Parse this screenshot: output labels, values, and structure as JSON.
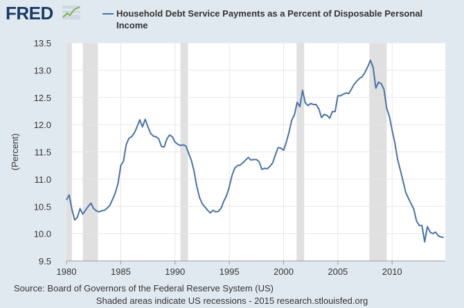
{
  "header": {
    "logo_text": "FRED",
    "logo_icon": "line-chart-icon"
  },
  "colors": {
    "background": "#e1e9f0",
    "plot_background": "#ffffff",
    "series_line": "#4572a7",
    "recession_shade": "#e0e0e0",
    "gridline": "#e6e6e6",
    "logo": "#1a3a66"
  },
  "footer": {
    "source": "Source: Board of Governors of the Federal Reserve System (US)",
    "note": "Shaded areas indicate US recessions - 2015 research.stlouisfed.org"
  },
  "chart_data": {
    "type": "line",
    "title": "",
    "ylabel": "(Percent)",
    "xlabel": "",
    "xlim": [
      1980,
      2014.9
    ],
    "ylim": [
      9.5,
      13.5
    ],
    "xticks": [
      1980,
      1985,
      1990,
      1995,
      2000,
      2005,
      2010
    ],
    "yticks": [
      "9.5",
      "10.0",
      "10.5",
      "11.0",
      "11.5",
      "12.0",
      "12.5",
      "13.0",
      "13.5"
    ],
    "grid": true,
    "legend_position": "top",
    "recessions": [
      [
        1980.0,
        1980.5
      ],
      [
        1981.5,
        1982.9
      ],
      [
        1990.5,
        1991.2
      ],
      [
        2001.2,
        2001.9
      ],
      [
        2007.9,
        2009.5
      ]
    ],
    "series": [
      {
        "name": "Household Debt Service Payments as a Percent of Disposable Personal Income",
        "x": [
          1980.0,
          1980.25,
          1980.5,
          1980.75,
          1981.0,
          1981.25,
          1981.5,
          1981.75,
          1982.0,
          1982.25,
          1982.5,
          1982.75,
          1983.0,
          1983.25,
          1983.5,
          1983.75,
          1984.0,
          1984.25,
          1984.5,
          1984.75,
          1985.0,
          1985.25,
          1985.5,
          1985.75,
          1986.0,
          1986.25,
          1986.5,
          1986.75,
          1987.0,
          1987.25,
          1987.5,
          1987.75,
          1988.0,
          1988.25,
          1988.5,
          1988.75,
          1989.0,
          1989.25,
          1989.5,
          1989.75,
          1990.0,
          1990.25,
          1990.5,
          1990.75,
          1991.0,
          1991.25,
          1991.5,
          1991.75,
          1992.0,
          1992.25,
          1992.5,
          1992.75,
          1993.0,
          1993.25,
          1993.5,
          1993.75,
          1994.0,
          1994.25,
          1994.5,
          1994.75,
          1995.0,
          1995.25,
          1995.5,
          1995.75,
          1996.0,
          1996.25,
          1996.5,
          1996.75,
          1997.0,
          1997.25,
          1997.5,
          1997.75,
          1998.0,
          1998.25,
          1998.5,
          1998.75,
          1999.0,
          1999.25,
          1999.5,
          1999.75,
          2000.0,
          2000.25,
          2000.5,
          2000.75,
          2001.0,
          2001.25,
          2001.5,
          2001.75,
          2002.0,
          2002.25,
          2002.5,
          2002.75,
          2003.0,
          2003.25,
          2003.5,
          2003.75,
          2004.0,
          2004.25,
          2004.5,
          2004.75,
          2005.0,
          2005.25,
          2005.5,
          2005.75,
          2006.0,
          2006.25,
          2006.5,
          2006.75,
          2007.0,
          2007.25,
          2007.5,
          2007.75,
          2008.0,
          2008.25,
          2008.5,
          2008.75,
          2009.0,
          2009.25,
          2009.5,
          2009.75,
          2010.0,
          2010.25,
          2010.5,
          2010.75,
          2011.0,
          2011.25,
          2011.5,
          2011.75,
          2012.0,
          2012.25,
          2012.5,
          2012.75,
          2013.0,
          2013.25,
          2013.5,
          2013.75,
          2014.0,
          2014.25,
          2014.5,
          2014.75
        ],
        "y": [
          10.62,
          10.71,
          10.45,
          10.25,
          10.3,
          10.46,
          10.36,
          10.43,
          10.5,
          10.56,
          10.46,
          10.42,
          10.4,
          10.42,
          10.43,
          10.47,
          10.52,
          10.63,
          10.75,
          10.92,
          11.25,
          11.33,
          11.63,
          11.75,
          11.78,
          11.85,
          11.96,
          12.09,
          11.96,
          12.1,
          11.96,
          11.84,
          11.79,
          11.78,
          11.74,
          11.6,
          11.59,
          11.74,
          11.81,
          11.78,
          11.68,
          11.64,
          11.62,
          11.63,
          11.61,
          11.48,
          11.35,
          11.15,
          10.87,
          10.67,
          10.55,
          10.49,
          10.43,
          10.38,
          10.43,
          10.4,
          10.41,
          10.47,
          10.6,
          10.7,
          10.86,
          11.07,
          11.2,
          11.25,
          11.26,
          11.3,
          11.35,
          11.4,
          11.35,
          11.36,
          11.36,
          11.32,
          11.18,
          11.2,
          11.19,
          11.24,
          11.3,
          11.45,
          11.58,
          11.57,
          11.53,
          11.68,
          11.86,
          12.08,
          12.18,
          12.41,
          12.33,
          12.63,
          12.4,
          12.35,
          12.39,
          12.37,
          12.37,
          12.29,
          12.13,
          12.19,
          12.17,
          12.12,
          12.24,
          12.24,
          12.53,
          12.53,
          12.56,
          12.58,
          12.57,
          12.65,
          12.74,
          12.8,
          12.85,
          12.88,
          12.96,
          13.06,
          13.18,
          13.05,
          12.67,
          12.78,
          12.75,
          12.65,
          12.3,
          12.15,
          11.9,
          11.67,
          11.37,
          11.17,
          10.97,
          10.76,
          10.65,
          10.55,
          10.45,
          10.23,
          10.15,
          10.15,
          9.85,
          10.13,
          10.03,
          10.0,
          10.03,
          9.96,
          9.94,
          9.93
        ]
      }
    ]
  }
}
